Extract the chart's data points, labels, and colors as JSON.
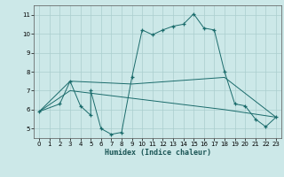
{
  "xlabel": "Humidex (Indice chaleur)",
  "bg_color": "#cce8e8",
  "grid_color": "#aacece",
  "line_color": "#1a6b6b",
  "xlim": [
    -0.5,
    23.5
  ],
  "ylim": [
    4.5,
    11.5
  ],
  "yticks": [
    5,
    6,
    7,
    8,
    9,
    10,
    11
  ],
  "xticks": [
    0,
    1,
    2,
    3,
    4,
    5,
    6,
    7,
    8,
    9,
    10,
    11,
    12,
    13,
    14,
    15,
    16,
    17,
    18,
    19,
    20,
    21,
    22,
    23
  ],
  "series1_x": [
    0,
    2,
    3,
    4,
    5,
    5,
    6,
    7,
    8,
    9,
    10,
    11,
    12,
    13,
    14,
    15,
    16,
    17,
    18,
    19,
    20,
    21,
    22,
    23
  ],
  "series1_y": [
    5.9,
    6.3,
    7.5,
    6.2,
    5.7,
    7.0,
    5.0,
    4.7,
    4.8,
    7.7,
    10.2,
    9.95,
    10.2,
    10.4,
    10.5,
    11.05,
    10.3,
    10.2,
    8.0,
    6.3,
    6.2,
    5.5,
    5.1,
    5.6
  ],
  "series2_x": [
    0,
    3,
    9,
    18,
    23
  ],
  "series2_y": [
    5.9,
    7.5,
    7.35,
    7.7,
    5.6
  ],
  "series3_x": [
    0,
    3,
    9,
    18,
    23
  ],
  "series3_y": [
    5.9,
    7.0,
    6.6,
    6.0,
    5.6
  ]
}
